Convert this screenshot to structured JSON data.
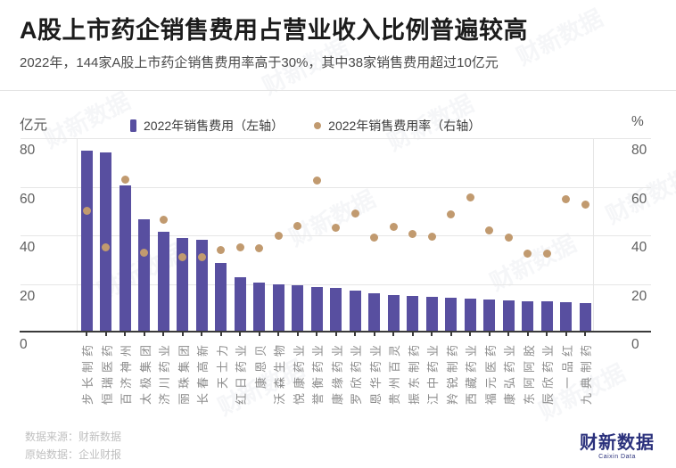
{
  "header": {
    "title": "A股上市药企销售费用占营业收入比例普遍较高",
    "subtitle": "2022年，144家A股上市药企销售费用率高于30%，其中38家销售费用超过10亿元"
  },
  "chart_data": {
    "type": "bar",
    "categories": [
      "步长制药",
      "恒瑞医药",
      "百济神州",
      "太极集团",
      "济川药业",
      "丽珠集团",
      "长春高新",
      "天士力",
      "红日药业",
      "康恩贝",
      "沃森生物",
      "悦康药业",
      "誉衡药业",
      "康缘药业",
      "罗欣药业",
      "恩华药业",
      "贵州百灵",
      "振东制药",
      "江中药业",
      "羚锐制药",
      "西藏药业",
      "福元医药",
      "康弘药业",
      "东阿阿胶",
      "辰欣药业",
      "一品红",
      "九典制药"
    ],
    "series": [
      {
        "name": "2022年销售费用（左轴）",
        "marker": "bar",
        "axis": "left",
        "values": [
          75,
          74,
          60.5,
          46.5,
          41.5,
          39,
          38,
          28.5,
          22.8,
          20.5,
          19.9,
          19.3,
          18.8,
          18.3,
          17.3,
          16.2,
          15.5,
          15,
          14.6,
          14.3,
          13.9,
          13.6,
          13.3,
          13,
          12.8,
          12.4,
          12.2
        ]
      },
      {
        "name": "2022年销售费用率（右轴）",
        "marker": "dot",
        "axis": "right",
        "values": [
          50,
          35,
          63,
          33,
          46.5,
          31,
          31,
          34,
          35,
          34.5,
          40,
          44,
          62.5,
          43,
          49,
          39,
          43.5,
          40.5,
          39.5,
          48.5,
          55.5,
          42,
          39,
          32.5,
          32.5,
          55,
          52.5
        ]
      }
    ],
    "left_axis": {
      "label": "亿元",
      "ticks": [
        80,
        60,
        40,
        20,
        0
      ],
      "range": [
        0,
        80
      ]
    },
    "right_axis": {
      "label": "%",
      "ticks": [
        80,
        60,
        40,
        20,
        0
      ],
      "range": [
        0,
        80
      ]
    },
    "grid": "horizontal",
    "legend_position": "top",
    "colors": {
      "bar": "#584fa0",
      "dot": "#c19a6f"
    }
  },
  "footer": {
    "source_line": "数据来源：财新数据",
    "original_line": "原始数据：企业财报",
    "logo_text": "财新数据",
    "logo_subtext": "Caixin Data"
  },
  "watermark": {
    "text": "财新数据"
  }
}
